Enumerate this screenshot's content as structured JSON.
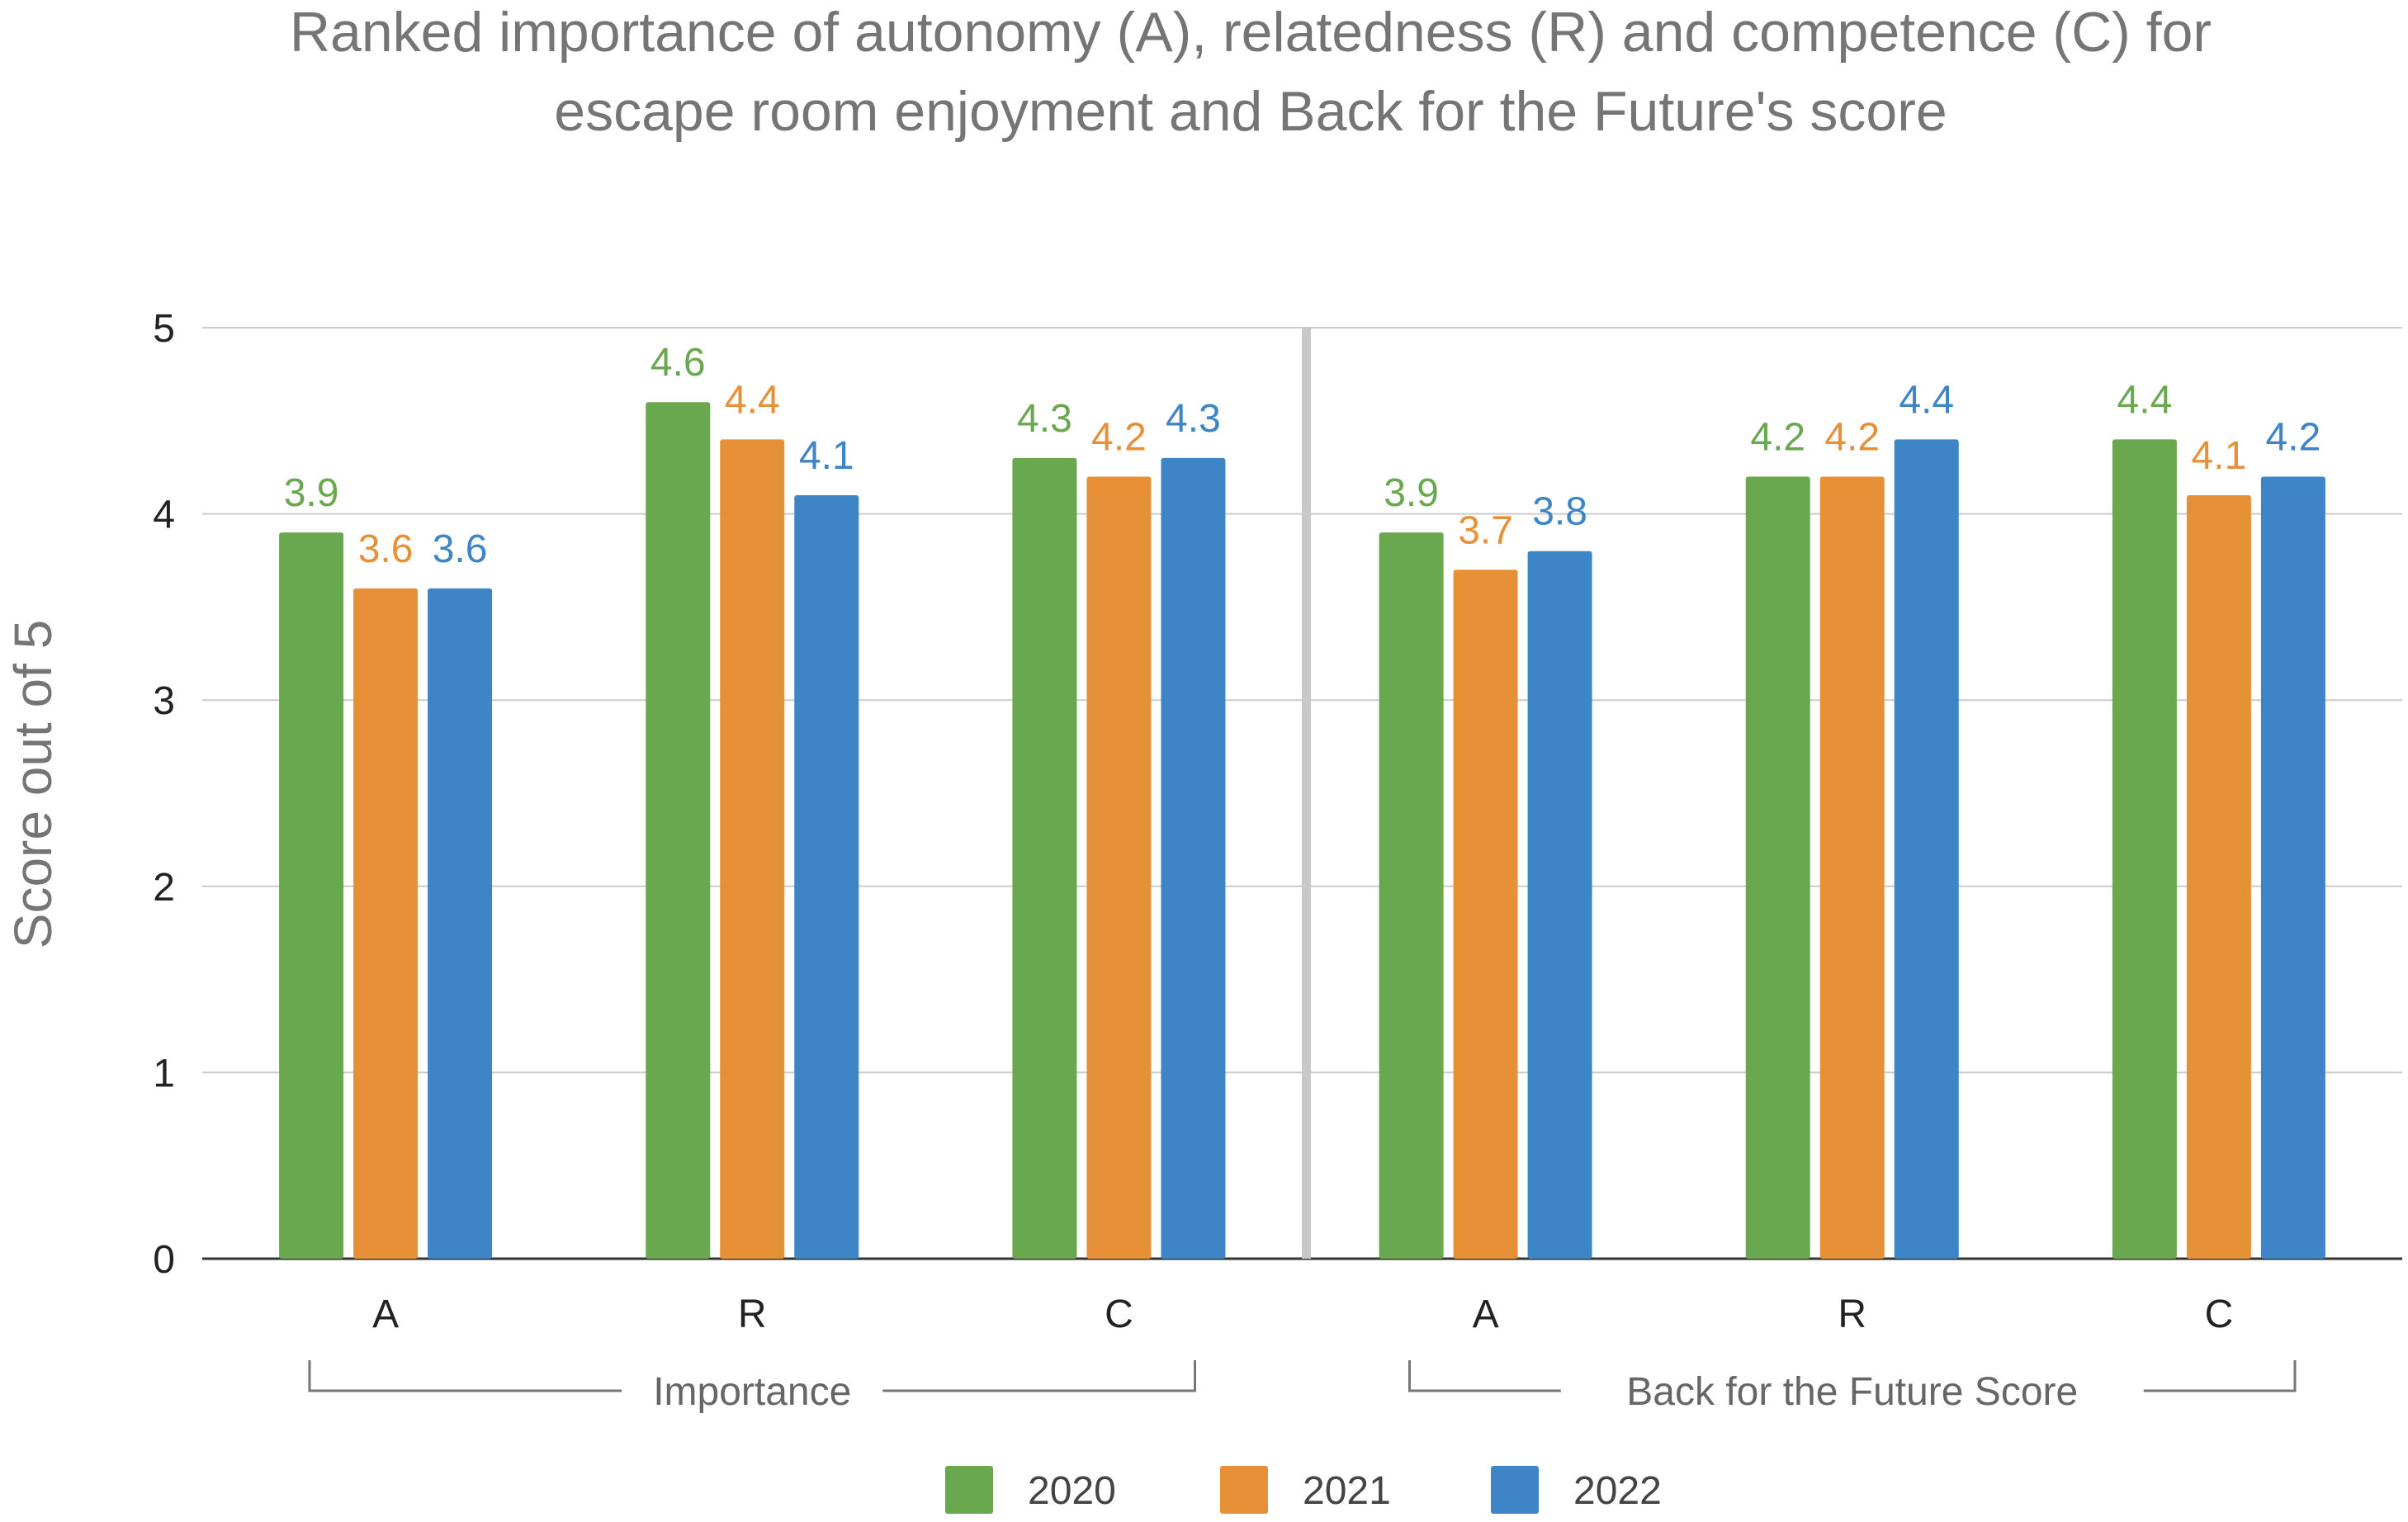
{
  "chart_data": {
    "type": "bar",
    "title_lines": [
      "Ranked importance of autonomy (A), relatedness (R) and competence (C) for",
      "escape room enjoyment and Back for the Future's score"
    ],
    "ylabel": "Score out of 5",
    "ylim": [
      0,
      5
    ],
    "yticks": [
      "0",
      "1",
      "2",
      "3",
      "4",
      "5"
    ],
    "grid": true,
    "categories": [
      "A",
      "R",
      "C",
      "A",
      "R",
      "C"
    ],
    "groups": [
      {
        "label": "Importance",
        "category_indices": [
          0,
          1,
          2
        ]
      },
      {
        "label": "Back for the Future Score",
        "category_indices": [
          3,
          4,
          5
        ]
      }
    ],
    "series": [
      {
        "name": "2020",
        "color": "#6aa84f",
        "values": [
          3.9,
          4.6,
          4.3,
          3.9,
          4.2,
          4.4
        ],
        "labels": [
          "3.9",
          "4.6",
          "4.3",
          "3.9",
          "4.2",
          "4.4"
        ]
      },
      {
        "name": "2021",
        "color": "#e69138",
        "values": [
          3.6,
          4.4,
          4.2,
          3.7,
          4.2,
          4.1
        ],
        "labels": [
          "3.6",
          "4.4",
          "4.2",
          "3.7",
          "4.2",
          "4.1"
        ]
      },
      {
        "name": "2022",
        "color": "#3d85c6",
        "values": [
          3.6,
          4.1,
          4.3,
          3.8,
          4.4,
          4.2
        ],
        "labels": [
          "3.6",
          "4.1",
          "4.3",
          "3.8",
          "4.4",
          "4.2"
        ]
      }
    ],
    "legend": {
      "position": "bottom",
      "entries": [
        "2020",
        "2021",
        "2022"
      ]
    },
    "separator": "between-groups"
  }
}
